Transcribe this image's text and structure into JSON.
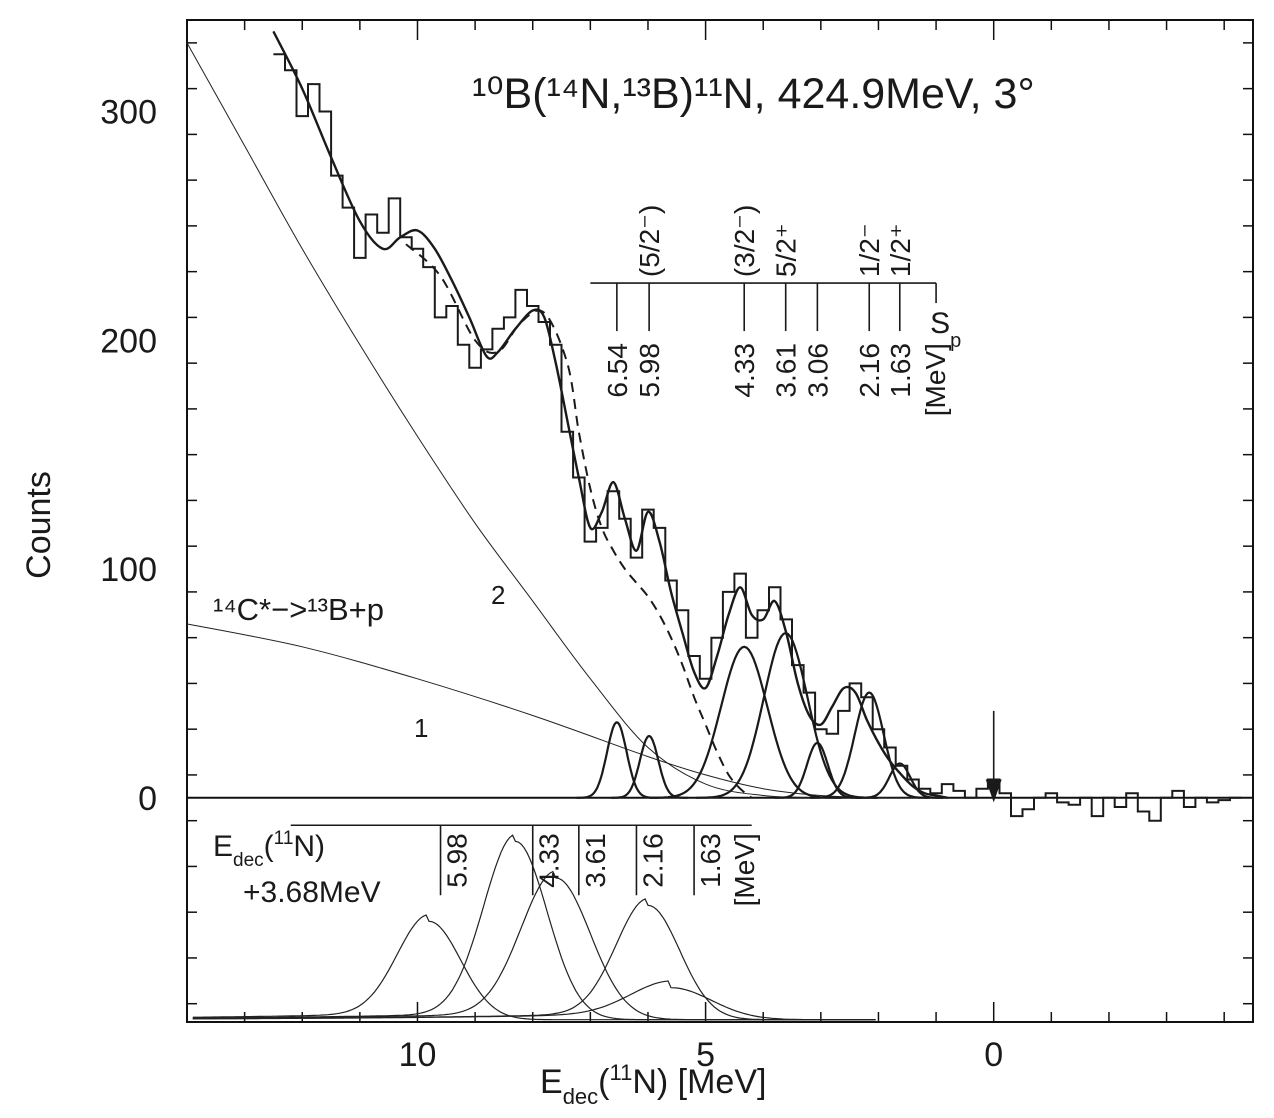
{
  "chart_data": {
    "type": "line",
    "title": "¹⁰B(¹⁴N,¹³B)¹¹N, 424.9MeV, 3°",
    "xlabel_main": "E",
    "xlabel_sub": "dec",
    "xlabel_sup": "11",
    "xlabel_rest": "N)  [MeV]",
    "xlabel_open": "(",
    "ylabel": "Counts",
    "xlim": [
      14.0,
      -4.5
    ],
    "ylim": [
      -98,
      340
    ],
    "x_ticks": [
      10,
      5,
      0
    ],
    "x_tick_labels": [
      "10",
      "5",
      "0"
    ],
    "y_ticks": [
      0,
      100,
      200,
      300
    ],
    "y_tick_labels": [
      "0",
      "100",
      "200",
      "300"
    ],
    "histogram": {
      "x": [
        12.4,
        12.2,
        12.0,
        11.8,
        11.6,
        11.4,
        11.2,
        11.0,
        10.8,
        10.6,
        10.4,
        10.2,
        10.0,
        9.8,
        9.6,
        9.4,
        9.2,
        9.0,
        8.8,
        8.6,
        8.4,
        8.2,
        8.0,
        7.8,
        7.6,
        7.4,
        7.2,
        7.0,
        6.8,
        6.6,
        6.4,
        6.2,
        6.0,
        5.8,
        5.6,
        5.4,
        5.2,
        5.0,
        4.8,
        4.6,
        4.4,
        4.2,
        4.0,
        3.8,
        3.6,
        3.4,
        3.2,
        3.0,
        2.8,
        2.6,
        2.4,
        2.2,
        2.0,
        1.8,
        1.6,
        1.4,
        1.2,
        1.0,
        0.8,
        0.6,
        0.4,
        0.2,
        0.0,
        -0.2,
        -0.4,
        -0.6,
        -0.8,
        -1.0,
        -1.2,
        -1.4,
        -1.6,
        -1.8,
        -2.0,
        -2.2,
        -2.4,
        -2.6,
        -2.8,
        -3.0,
        -3.2,
        -3.4,
        -3.6,
        -3.8,
        -4.0,
        -4.2
      ],
      "counts": [
        325,
        318,
        298,
        312,
        300,
        272,
        258,
        236,
        255,
        247,
        262,
        245,
        240,
        232,
        210,
        215,
        198,
        188,
        196,
        205,
        210,
        222,
        215,
        208,
        198,
        160,
        140,
        112,
        118,
        134,
        122,
        105,
        126,
        118,
        95,
        82,
        62,
        52,
        70,
        90,
        98,
        70,
        82,
        92,
        78,
        58,
        46,
        30,
        28,
        38,
        50,
        44,
        30,
        22,
        14,
        8,
        4,
        2,
        6,
        3,
        0,
        4,
        8,
        2,
        -8,
        -5,
        0,
        2,
        -2,
        -3,
        0,
        -8,
        0,
        -4,
        2,
        -6,
        -10,
        0,
        3,
        -4,
        0,
        -2,
        -1,
        0
      ]
    },
    "fit_curve": {
      "x": [
        12.5,
        12.0,
        11.5,
        11.0,
        10.6,
        10.3,
        10.0,
        9.7,
        9.4,
        9.1,
        8.8,
        8.6,
        8.3,
        8.0,
        7.8,
        7.6,
        7.4,
        7.2,
        7.0,
        6.8,
        6.6,
        6.4,
        6.2,
        6.0,
        5.8,
        5.6,
        5.4,
        5.2,
        5.0,
        4.8,
        4.6,
        4.4,
        4.2,
        4.0,
        3.8,
        3.6,
        3.4,
        3.2,
        3.0,
        2.8,
        2.6,
        2.4,
        2.2,
        2.0,
        1.8,
        1.6,
        1.4,
        1.2,
        1.0,
        0.8
      ],
      "y": [
        335,
        310,
        280,
        252,
        240,
        245,
        248,
        240,
        226,
        210,
        193,
        195,
        205,
        213,
        210,
        190,
        165,
        140,
        118,
        125,
        138,
        122,
        108,
        125,
        112,
        90,
        72,
        55,
        48,
        62,
        80,
        92,
        80,
        78,
        86,
        72,
        50,
        36,
        32,
        40,
        48,
        46,
        34,
        24,
        16,
        10,
        5,
        2,
        1,
        0
      ]
    },
    "dashed_background": {
      "x": [
        10.2,
        9.6,
        9.0,
        8.6,
        8.2,
        7.8,
        7.4,
        7.2,
        7.0,
        6.8,
        6.6,
        6.4,
        6.2,
        6.0,
        5.8,
        5.6,
        5.4,
        5.2,
        5.0,
        4.8,
        4.6,
        4.4,
        4.2
      ],
      "y": [
        242,
        228,
        200,
        195,
        208,
        212,
        190,
        160,
        135,
        118,
        108,
        100,
        94,
        88,
        80,
        70,
        58,
        44,
        32,
        20,
        10,
        4,
        0
      ]
    },
    "background_1": {
      "x": [
        14.0,
        12.0,
        10.0,
        8.0,
        6.0,
        5.0,
        4.0,
        3.0,
        2.0,
        1.0
      ],
      "y": [
        76,
        66,
        52,
        36,
        18,
        10,
        4,
        1,
        0,
        0
      ]
    },
    "background_2": {
      "x": [
        14.0,
        13.0,
        12.0,
        11.0,
        10.0,
        9.0,
        8.0,
        7.0,
        6.0,
        5.0,
        4.0,
        3.0
      ],
      "y": [
        330,
        285,
        240,
        198,
        158,
        120,
        86,
        52,
        22,
        6,
        1,
        0
      ]
    },
    "peaks": [
      {
        "center": 6.54,
        "amplitude": 33,
        "sigma": 0.17
      },
      {
        "center": 5.98,
        "amplitude": 27,
        "sigma": 0.16
      },
      {
        "center": 4.33,
        "amplitude": 66,
        "sigma": 0.4
      },
      {
        "center": 3.61,
        "amplitude": 72,
        "sigma": 0.38
      },
      {
        "center": 3.06,
        "amplitude": 24,
        "sigma": 0.18
      },
      {
        "center": 2.16,
        "amplitude": 46,
        "sigma": 0.25
      },
      {
        "center": 1.63,
        "amplitude": 15,
        "sigma": 0.18
      }
    ],
    "lower_peaks": [
      {
        "center": 9.8,
        "amplitude": 43,
        "sigma": 0.55
      },
      {
        "center": 8.3,
        "amplitude": 78,
        "sigma": 0.55
      },
      {
        "center": 7.6,
        "amplitude": 62,
        "sigma": 0.6
      },
      {
        "center": 6.0,
        "amplitude": 50,
        "sigma": 0.55
      },
      {
        "center": 5.6,
        "amplitude": 14,
        "sigma": 0.7
      }
    ],
    "lower_baseline_y": -97,
    "level_scheme": {
      "line_y": 225,
      "line_x": [
        7.0,
        1.0
      ],
      "levels": [
        {
          "x": 6.54,
          "energy": "6.54",
          "spin": ""
        },
        {
          "x": 5.98,
          "energy": "5.98",
          "spin": "(5/2⁻)"
        },
        {
          "x": 4.33,
          "energy": "4.33",
          "spin": "(3/2⁻)"
        },
        {
          "x": 3.61,
          "energy": "3.61",
          "spin": "5/2⁺"
        },
        {
          "x": 3.06,
          "energy": "3.06",
          "spin": ""
        },
        {
          "x": 2.16,
          "energy": "2.16",
          "spin": "1/2⁻"
        },
        {
          "x": 1.63,
          "energy": "1.63",
          "spin": "1/2⁺"
        }
      ],
      "unit_label": "[MeV]",
      "sp_label": "S",
      "sp_sub": "p",
      "sp_x": 1.0
    },
    "lower_scale": {
      "line_y": -12,
      "line_x": [
        12.2,
        4.2
      ],
      "levels": [
        {
          "x": 9.6,
          "energy": "5.98"
        },
        {
          "x": 8.0,
          "energy": "4.33"
        },
        {
          "x": 7.2,
          "energy": "3.61"
        },
        {
          "x": 6.2,
          "energy": "2.16"
        },
        {
          "x": 5.2,
          "energy": "1.63"
        }
      ],
      "unit_label": "[MeV]"
    },
    "annotations": {
      "edec_label": "E",
      "edec_sub": "dec",
      "edec_open": "(",
      "edec_sup": "11",
      "edec_rest": "N)",
      "edec_offset": "+3.68MeV",
      "reaction_14c": "¹⁴C*−>¹³B+p",
      "label_1": "1",
      "label_2": "2",
      "arrow_x": 0.0
    }
  }
}
